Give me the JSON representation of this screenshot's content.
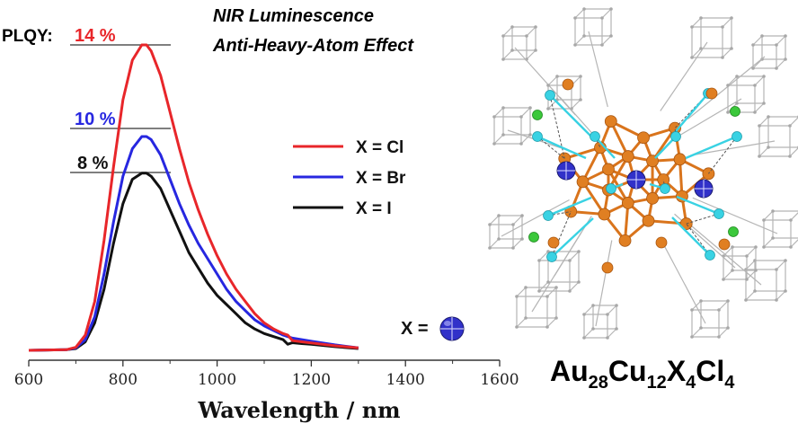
{
  "header": {
    "line1": "NIR Luminescence",
    "line2": "Anti-Heavy-Atom Effect"
  },
  "plqy": {
    "label": "PLQY:",
    "values": [
      {
        "text": "14 %",
        "color": "#e8262a"
      },
      {
        "text": "10 %",
        "color": "#2727e0"
      },
      {
        "text": "8 %",
        "color": "#111111"
      }
    ]
  },
  "legend": [
    "X = Cl",
    "X = Br",
    "X = I"
  ],
  "x_eq": "X =",
  "formula": {
    "parts": [
      {
        "t": "Au",
        "sub": false
      },
      {
        "t": "28",
        "sub": true
      },
      {
        "t": "Cu",
        "sub": false
      },
      {
        "t": "12",
        "sub": true
      },
      {
        "t": "X",
        "sub": false
      },
      {
        "t": "4",
        "sub": true
      },
      {
        "t": "Cl",
        "sub": false
      },
      {
        "t": "4",
        "sub": true
      }
    ]
  },
  "colors": {
    "cl": "#e8262a",
    "br": "#2727e0",
    "i": "#111111",
    "au": "#e07f22",
    "cu": "#39d2e3",
    "cl_atom": "#3bc83b",
    "x_atom": "#3131c9",
    "ligand": "#b5b5b5"
  },
  "chart_data": {
    "type": "line",
    "xlabel": "Wavelength / nm",
    "ylabel": "",
    "xlim": [
      600,
      1600
    ],
    "ylim": [
      0,
      1.0
    ],
    "xticks": [
      600,
      800,
      1000,
      1200,
      1400,
      1600
    ],
    "grid": false,
    "legend_position": "middle-right",
    "x": [
      600,
      680,
      700,
      720,
      740,
      760,
      780,
      800,
      820,
      840,
      850,
      860,
      880,
      900,
      920,
      940,
      960,
      980,
      1000,
      1020,
      1040,
      1060,
      1080,
      1100,
      1120,
      1140,
      1150,
      1160,
      1180,
      1200,
      1250,
      1300
    ],
    "series": [
      {
        "name": "X = Cl",
        "color": "#e8262a",
        "values": [
          0.0,
          0.002,
          0.01,
          0.05,
          0.16,
          0.36,
          0.6,
          0.82,
          0.95,
          1.0,
          1.0,
          0.98,
          0.9,
          0.78,
          0.66,
          0.55,
          0.46,
          0.38,
          0.31,
          0.25,
          0.2,
          0.16,
          0.12,
          0.09,
          0.07,
          0.055,
          0.05,
          0.032,
          0.028,
          0.024,
          0.015,
          0.008
        ]
      },
      {
        "name": "X = Br",
        "color": "#2727e0",
        "values": [
          0.0,
          0.002,
          0.008,
          0.035,
          0.11,
          0.25,
          0.42,
          0.57,
          0.66,
          0.7,
          0.7,
          0.69,
          0.64,
          0.56,
          0.48,
          0.41,
          0.35,
          0.3,
          0.25,
          0.2,
          0.16,
          0.13,
          0.1,
          0.08,
          0.065,
          0.05,
          0.045,
          0.04,
          0.035,
          0.03,
          0.018,
          0.008
        ]
      },
      {
        "name": "X = I",
        "color": "#111111",
        "values": [
          0.0,
          0.002,
          0.006,
          0.028,
          0.09,
          0.2,
          0.35,
          0.48,
          0.56,
          0.58,
          0.58,
          0.57,
          0.53,
          0.46,
          0.39,
          0.32,
          0.27,
          0.22,
          0.18,
          0.15,
          0.12,
          0.09,
          0.07,
          0.055,
          0.045,
          0.035,
          0.02,
          0.025,
          0.022,
          0.02,
          0.012,
          0.006
        ]
      }
    ]
  }
}
